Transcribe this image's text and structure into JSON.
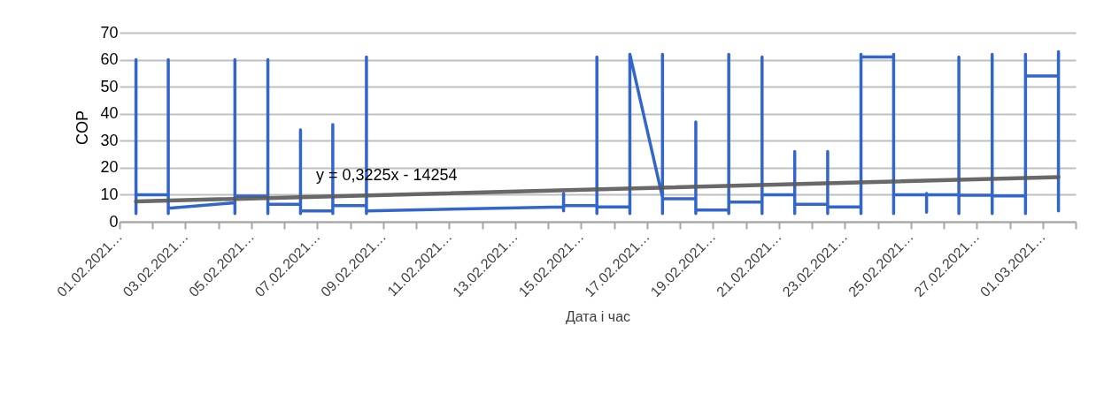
{
  "chart_data": {
    "type": "line",
    "xlabel": "Дата і час",
    "ylabel": "COP",
    "grid": "y",
    "annotations": [
      "y = 0,3225x - 14254"
    ],
    "xlim": [
      "2021-02-01",
      "2021-03-02"
    ],
    "ylim": [
      0,
      70
    ],
    "yticks": [
      0,
      10,
      20,
      30,
      40,
      50,
      60,
      70
    ],
    "xticks": [
      {
        "value": "2021-02-01",
        "label": "01.02.2021…"
      },
      {
        "value": "2021-02-02",
        "label": null
      },
      {
        "value": "2021-02-03",
        "label": "03.02.2021…"
      },
      {
        "value": "2021-02-04",
        "label": null
      },
      {
        "value": "2021-02-05",
        "label": "05.02.2021…"
      },
      {
        "value": "2021-02-06",
        "label": null
      },
      {
        "value": "2021-02-07",
        "label": "07.02.2021…"
      },
      {
        "value": "2021-02-08",
        "label": null
      },
      {
        "value": "2021-02-09",
        "label": "09.02.2021…"
      },
      {
        "value": "2021-02-10",
        "label": null
      },
      {
        "value": "2021-02-11",
        "label": "11.02.2021…"
      },
      {
        "value": "2021-02-12",
        "label": null
      },
      {
        "value": "2021-02-13",
        "label": "13.02.2021…"
      },
      {
        "value": "2021-02-14",
        "label": null
      },
      {
        "value": "2021-02-15",
        "label": "15.02.2021…"
      },
      {
        "value": "2021-02-16",
        "label": null
      },
      {
        "value": "2021-02-17",
        "label": "17.02.2021…"
      },
      {
        "value": "2021-02-18",
        "label": null
      },
      {
        "value": "2021-02-19",
        "label": "19.02.2021…"
      },
      {
        "value": "2021-02-20",
        "label": null
      },
      {
        "value": "2021-02-21",
        "label": "21.02.2021…"
      },
      {
        "value": "2021-02-22",
        "label": null
      },
      {
        "value": "2021-02-23",
        "label": "23.02.2021…"
      },
      {
        "value": "2021-02-24",
        "label": null
      },
      {
        "value": "2021-02-25",
        "label": "25.02.2021…"
      },
      {
        "value": "2021-02-26",
        "label": null
      },
      {
        "value": "2021-02-27",
        "label": "27.02.2021…"
      },
      {
        "value": "2021-02-28",
        "label": null
      },
      {
        "value": "2021-03-01",
        "label": "01.03.2021…"
      },
      {
        "value": "2021-03-02",
        "label": null
      }
    ],
    "x": [
      "2021-02-01T12:00",
      "2021-02-01T12:00",
      "2021-02-01T12:00",
      "2021-02-02T11:30",
      "2021-02-02T11:30",
      "2021-02-02T11:30",
      "2021-02-02T11:30",
      "2021-02-04T12:00",
      "2021-02-04T12:00",
      "2021-02-04T12:00",
      "2021-02-04T12:00",
      "2021-02-05T12:00",
      "2021-02-05T12:00",
      "2021-02-05T12:00",
      "2021-02-05T12:00",
      "2021-02-06T11:45",
      "2021-02-06T11:45",
      "2021-02-06T11:45",
      "2021-02-06T11:45",
      "2021-02-07T11:15",
      "2021-02-07T11:15",
      "2021-02-07T11:15",
      "2021-02-07T11:15",
      "2021-02-08T11:45",
      "2021-02-08T11:45",
      "2021-02-08T11:45",
      "2021-02-08T11:45",
      "2021-02-14T11:15",
      "2021-02-14T11:15",
      "2021-02-14T11:15",
      "2021-02-14T11:15",
      "2021-02-15T11:30",
      "2021-02-15T11:30",
      "2021-02-15T11:30",
      "2021-02-15T11:30",
      "2021-02-16T11:30",
      "2021-02-16T11:30",
      "2021-02-16T11:30",
      "2021-02-17T11:15",
      "2021-02-17T11:15",
      "2021-02-17T11:15",
      "2021-02-17T11:15",
      "2021-02-18T11:30",
      "2021-02-18T11:30",
      "2021-02-18T11:30",
      "2021-02-18T11:30",
      "2021-02-19T11:30",
      "2021-02-19T11:30",
      "2021-02-19T11:30",
      "2021-02-19T11:30",
      "2021-02-20T11:45",
      "2021-02-20T11:45",
      "2021-02-20T11:45",
      "2021-02-20T11:45",
      "2021-02-21T11:30",
      "2021-02-21T11:30",
      "2021-02-21T11:30",
      "2021-02-21T11:30",
      "2021-02-22T11:30",
      "2021-02-22T11:30",
      "2021-02-22T11:30",
      "2021-02-22T11:30",
      "2021-02-22T11:30",
      "2021-02-23T11:45",
      "2021-02-23T11:45",
      "2021-02-23T11:45",
      "2021-02-23T11:45",
      "2021-02-24T11:30",
      "2021-02-24T11:30",
      "2021-02-24T11:30",
      "2021-02-24T11:30",
      "2021-02-25T11:30",
      "2021-02-25T11:30",
      "2021-02-25T11:30",
      "2021-02-25T11:30",
      "2021-02-26T11:00",
      "2021-02-26T11:00",
      "2021-02-26T11:00",
      "2021-02-26T11:00",
      "2021-02-27T11:15",
      "2021-02-27T11:15",
      "2021-02-27T11:15",
      "2021-02-27T11:15",
      "2021-02-28T11:30",
      "2021-02-28T11:30",
      "2021-02-28T11:30",
      "2021-02-28T11:30",
      "2021-03-01T11:30",
      "2021-03-01T11:30",
      "2021-03-01T11:30"
    ],
    "series": [
      {
        "color": "#3366cc",
        "values": [
          3,
          60,
          10,
          10,
          60,
          3,
          5,
          7,
          3,
          60,
          9.5,
          9.5,
          60,
          3,
          6.5,
          6.5,
          34,
          3,
          4,
          4,
          36,
          3,
          6,
          6,
          61,
          3,
          4,
          5.5,
          10.5,
          4,
          6,
          6,
          3,
          61,
          5.5,
          5.5,
          3,
          62,
          9,
          3,
          62,
          8.5,
          8.5,
          37,
          3,
          4.3,
          4.3,
          3,
          62,
          7.3,
          7.3,
          3,
          61,
          10,
          10,
          26,
          3,
          6.5,
          6.5,
          26,
          3,
          10,
          5.5,
          5.5,
          3,
          62,
          61,
          61,
          62,
          3,
          10,
          10,
          10.5,
          3.5,
          10,
          10,
          3,
          61,
          9.8,
          9.8,
          3,
          62,
          9.6,
          9.6,
          3,
          62,
          54,
          54,
          63,
          4
        ]
      },
      {
        "type": "line",
        "color": "#595959",
        "x": [
          "2021-02-01T12:00",
          "2021-03-01T11:30"
        ],
        "values": [
          7.5,
          16.5
        ]
      }
    ]
  }
}
